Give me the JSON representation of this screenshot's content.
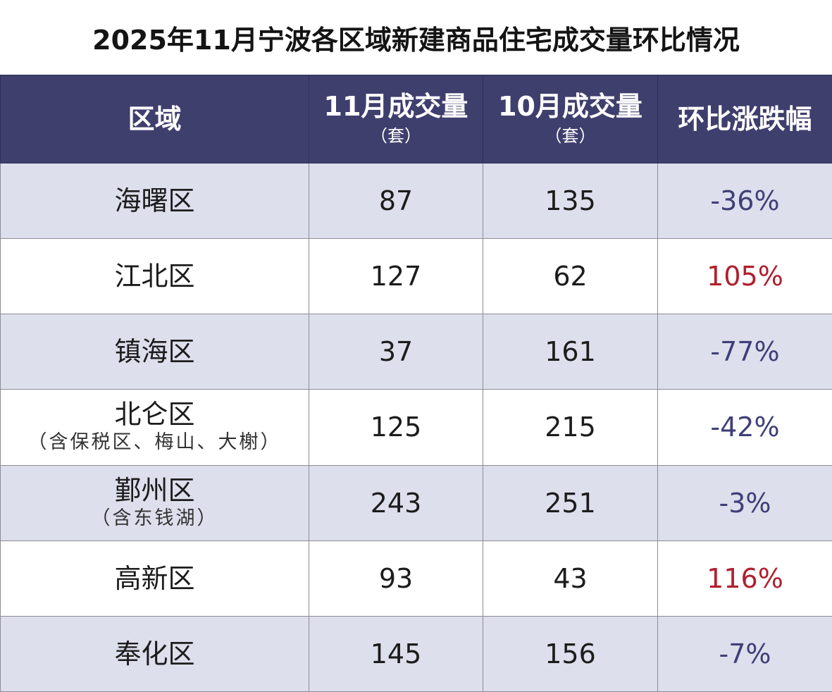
{
  "title": "2025年11月宁波各区域新建商品住宅成交量环比情况",
  "colors": {
    "header_bg": "#3f3f6e",
    "header_text": "#ffffff",
    "row_alt_bg": "#dedfed",
    "row_plain_bg": "#ffffff",
    "negative": "#3f3f78",
    "positive": "#b0202e"
  },
  "header": {
    "region": "区域",
    "nov_main": "11月成交量",
    "nov_unit": "（套）",
    "oct_main": "10月成交量",
    "oct_unit": "（套）",
    "change": "环比涨跌幅"
  },
  "chart_data": {
    "type": "table",
    "title": "2025年11月宁波各区域新建商品住宅成交量环比情况",
    "columns": [
      "区域",
      "11月成交量（套）",
      "10月成交量（套）",
      "环比涨跌幅"
    ],
    "rows": [
      {
        "region": "海曙区",
        "note": "",
        "nov": "87",
        "oct": "135",
        "change": "-36%",
        "direction": "down"
      },
      {
        "region": "江北区",
        "note": "",
        "nov": "127",
        "oct": "62",
        "change": "105%",
        "direction": "up"
      },
      {
        "region": "镇海区",
        "note": "",
        "nov": "37",
        "oct": "161",
        "change": "-77%",
        "direction": "down"
      },
      {
        "region": "北仑区",
        "note": "（含保税区、梅山、大榭）",
        "nov": "125",
        "oct": "215",
        "change": "-42%",
        "direction": "down"
      },
      {
        "region": "鄞州区",
        "note": "（含东钱湖）",
        "nov": "243",
        "oct": "251",
        "change": "-3%",
        "direction": "down"
      },
      {
        "region": "高新区",
        "note": "",
        "nov": "93",
        "oct": "43",
        "change": "116%",
        "direction": "up"
      },
      {
        "region": "奉化区",
        "note": "",
        "nov": "145",
        "oct": "156",
        "change": "-7%",
        "direction": "down"
      }
    ]
  }
}
